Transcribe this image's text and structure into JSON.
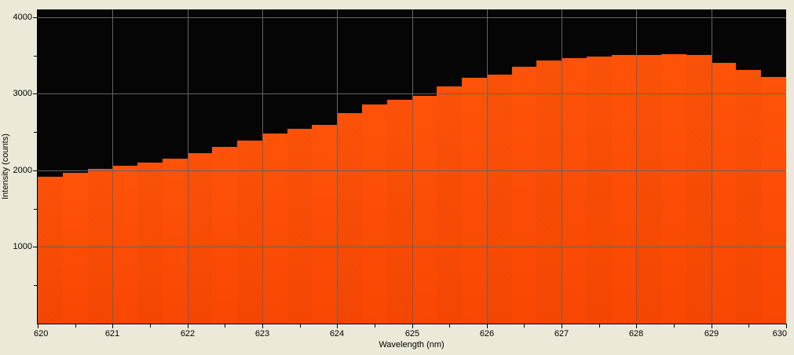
{
  "chart_data": {
    "type": "area",
    "style": "staircase-histogram",
    "title": "",
    "xlabel": "Wavelength (nm)",
    "ylabel": "Intensity (counts)",
    "xlim": [
      620,
      630
    ],
    "ylim": [
      0,
      4100
    ],
    "x_major_ticks": [
      620,
      621,
      622,
      623,
      624,
      625,
      626,
      627,
      628,
      629,
      630
    ],
    "x_tick_labels": [
      "620",
      "621",
      "622",
      "623",
      "624",
      "625",
      "626",
      "627",
      "628",
      "629",
      "630"
    ],
    "x_minor_tick_step": 0.5,
    "y_major_ticks": [
      1000,
      2000,
      3000,
      4000
    ],
    "y_tick_labels": [
      "1000",
      "2000",
      "3000",
      "4000"
    ],
    "y_minor_tick_step": 500,
    "grid": true,
    "legend": "none",
    "series": [
      {
        "name": "intensity",
        "x_start": 620.0,
        "x_step": 0.3333,
        "values": [
          1920,
          1970,
          2015,
          2060,
          2100,
          2150,
          2225,
          2310,
          2385,
          2480,
          2545,
          2590,
          2745,
          2865,
          2920,
          2975,
          3095,
          3210,
          3250,
          3350,
          3430,
          3465,
          3490,
          3505,
          3510,
          3520,
          3510,
          3400,
          3310,
          3220
        ]
      }
    ],
    "colors": {
      "fill": "#fb4a05",
      "plot_background": "#050505",
      "gridline": "#646464",
      "page_background": "#ece9d8",
      "axis": "#000000",
      "text": "#000000"
    }
  }
}
